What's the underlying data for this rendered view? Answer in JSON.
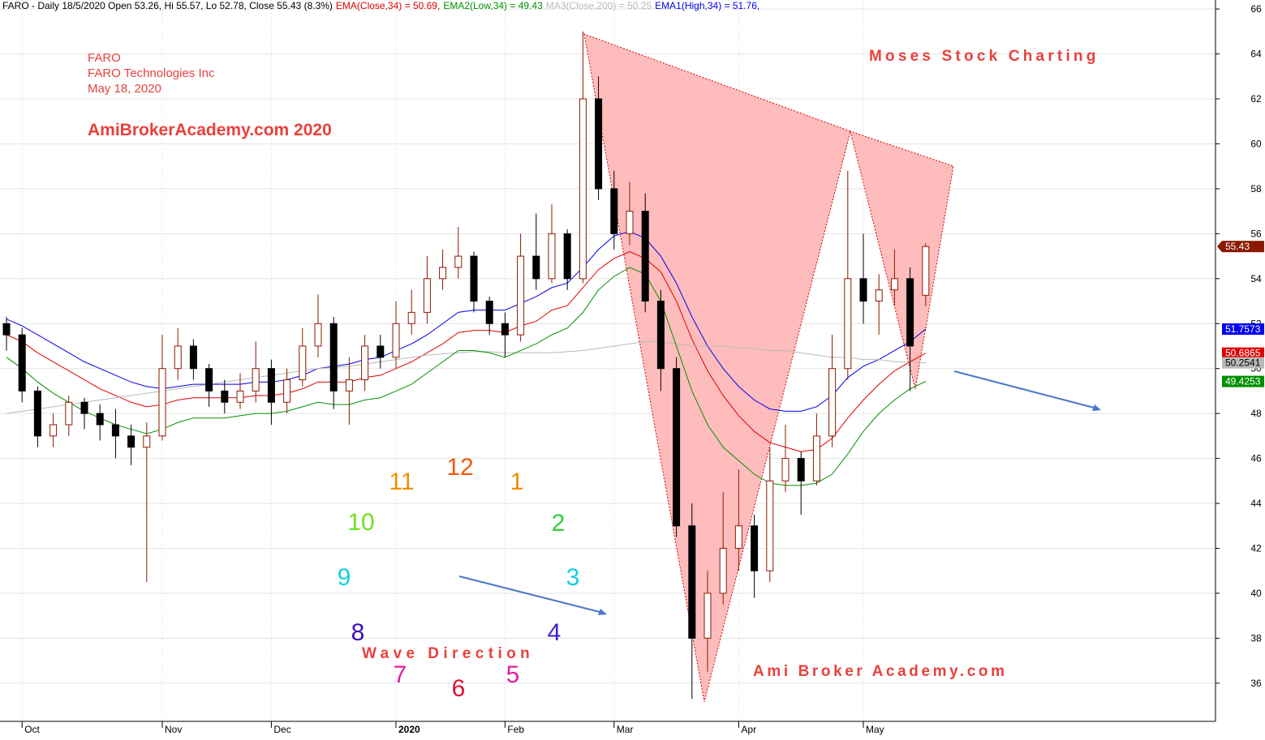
{
  "chart_data": {
    "type": "candlestick",
    "title": "FARO - Daily 18/5/2020 Open 53.26, Hi 55.57, Lo 52.78, Close 55.43 (8.3%)",
    "categories": [
      null,
      "Oct",
      null,
      null,
      null,
      null,
      null,
      null,
      null,
      null,
      "Nov",
      null,
      null,
      null,
      null,
      null,
      null,
      "Dec",
      null,
      null,
      null,
      null,
      null,
      null,
      null,
      "2020",
      null,
      null,
      null,
      null,
      null,
      null,
      "Feb",
      null,
      null,
      null,
      null,
      null,
      null,
      "Mar",
      null,
      null,
      null,
      null,
      null,
      null,
      null,
      "Apr",
      null,
      null,
      null,
      null,
      null,
      null,
      null,
      "May",
      null,
      null,
      null,
      null
    ],
    "open": [
      52,
      51.5,
      49,
      47,
      47.5,
      48.5,
      48,
      47.5,
      47,
      46.5,
      47,
      50,
      51,
      50,
      49,
      48.5,
      49,
      50,
      48.5,
      49.5,
      51,
      52,
      49,
      49.5,
      51,
      50.5,
      52,
      52.5,
      54,
      54.5,
      55,
      53,
      52,
      51.5,
      55,
      54,
      56,
      54,
      62,
      58,
      56,
      57,
      53,
      50,
      43,
      38,
      40,
      42,
      43,
      41,
      45,
      46,
      45,
      47,
      50,
      54,
      53,
      53.5,
      54,
      53.26
    ],
    "high": [
      52.3,
      51.8,
      49.2,
      48,
      48.8,
      48.7,
      48.4,
      48.2,
      47.5,
      47.6,
      51.5,
      51.8,
      51.3,
      50.2,
      49.5,
      49.8,
      51.2,
      50.4,
      50,
      51.8,
      53.3,
      52.3,
      50.5,
      51.5,
      51.5,
      53,
      53.5,
      55,
      55.3,
      56.3,
      55.2,
      53.2,
      52.5,
      56,
      56.9,
      57.3,
      56.2,
      65,
      63,
      58.8,
      58.3,
      57.8,
      53.5,
      50.5,
      44,
      41,
      44.5,
      45.5,
      43.5,
      46.5,
      47.5,
      46.3,
      48,
      51.5,
      58.8,
      56,
      54.2,
      55.3,
      54.5,
      55.57
    ],
    "low": [
      50.8,
      48.5,
      46.5,
      46.5,
      47,
      47.3,
      46.8,
      46,
      45.7,
      40.5,
      46.8,
      49.5,
      49.5,
      48.3,
      48,
      48.2,
      48.5,
      47.5,
      48,
      49.2,
      50.5,
      48.2,
      47.5,
      49,
      50,
      50,
      51.5,
      52,
      53.5,
      54,
      52.5,
      51.5,
      50.5,
      51.2,
      53.5,
      53.8,
      53.5,
      53.8,
      57.5,
      55.3,
      55.5,
      52.5,
      49,
      42.5,
      35.3,
      36.5,
      39.5,
      41,
      39.8,
      40.5,
      44.5,
      43.5,
      44.8,
      46.5,
      49.5,
      52,
      51.5,
      52.8,
      49,
      52.78
    ],
    "close": [
      51.5,
      49,
      47,
      47.5,
      48.5,
      48,
      47.5,
      47,
      46.5,
      47,
      50,
      51,
      50,
      49,
      48.5,
      49,
      50,
      48.5,
      49.5,
      51,
      52,
      49,
      49.5,
      51,
      50.5,
      52,
      52.5,
      54,
      54.5,
      55,
      53,
      52,
      51.5,
      55,
      54,
      56,
      54,
      62,
      58,
      56,
      57,
      53,
      50,
      43,
      38,
      40,
      42,
      43,
      41,
      45,
      46,
      45,
      47,
      50,
      54,
      53,
      53.5,
      54,
      51,
      55.43
    ],
    "close_color": "#8b1a00",
    "series": [
      {
        "name": "EMA1(High,34) = 51.76,",
        "color": "#0000ee",
        "values": [
          52.2,
          51.9,
          51.5,
          51.1,
          50.7,
          50.3,
          50,
          49.7,
          49.4,
          49.2,
          49.1,
          49.2,
          49.3,
          49.3,
          49.3,
          49.3,
          49.4,
          49.4,
          49.5,
          49.7,
          50,
          50.1,
          50.2,
          50.4,
          50.5,
          50.8,
          51.1,
          51.5,
          52,
          52.5,
          52.6,
          52.6,
          52.6,
          52.9,
          53.2,
          53.6,
          53.8,
          54.5,
          55.3,
          55.9,
          56.1,
          55.8,
          55,
          53.8,
          52.3,
          51,
          50,
          49.2,
          48.6,
          48.2,
          48.1,
          48.1,
          48.3,
          48.8,
          49.6,
          50.1,
          50.4,
          50.8,
          51.2,
          51.7573
        ]
      },
      {
        "name": "EMA(Close,34) = 50.69,",
        "color": "#e00000",
        "values": [
          51.5,
          51.2,
          50.7,
          50.3,
          49.9,
          49.5,
          49.1,
          48.8,
          48.5,
          48.3,
          48.4,
          48.6,
          48.7,
          48.7,
          48.7,
          48.7,
          48.8,
          48.8,
          48.9,
          49.1,
          49.4,
          49.4,
          49.4,
          49.6,
          49.7,
          50,
          50.3,
          50.7,
          51.1,
          51.6,
          51.7,
          51.7,
          51.6,
          51.9,
          52.1,
          52.6,
          52.8,
          53.6,
          54.4,
          54.9,
          55.2,
          54.9,
          54.3,
          53,
          51.3,
          49.9,
          48.8,
          47.9,
          47.2,
          46.7,
          46.5,
          46.3,
          46.4,
          46.9,
          47.8,
          48.6,
          49.3,
          49.9,
          50.3,
          50.6865
        ]
      },
      {
        "name": "MA3(Close,200) = 50.25",
        "color": "#b8b8b8",
        "values": [
          48,
          48.1,
          48.2,
          48.3,
          48.4,
          48.5,
          48.6,
          48.7,
          48.8,
          48.9,
          49,
          49.1,
          49.2,
          49.3,
          49.4,
          49.5,
          49.6,
          49.7,
          49.8,
          49.9,
          50,
          50.05,
          50.1,
          50.2,
          50.3,
          50.4,
          50.5,
          50.6,
          50.65,
          50.7,
          50.75,
          50.75,
          50.7,
          50.7,
          50.7,
          50.7,
          50.75,
          50.8,
          50.9,
          51,
          51.1,
          51.2,
          51.2,
          51.1,
          51,
          51,
          51,
          50.9,
          50.9,
          50.8,
          50.8,
          50.7,
          50.6,
          50.5,
          50.5,
          50.4,
          50.4,
          50.3,
          50.3,
          50.2541
        ]
      },
      {
        "name": "EMA2(Low,34) = 49.43",
        "color": "#009000",
        "values": [
          50.5,
          50,
          49.4,
          48.9,
          48.5,
          48.1,
          47.8,
          47.5,
          47.3,
          47.1,
          47.3,
          47.6,
          47.8,
          47.8,
          47.8,
          47.9,
          48,
          48,
          48.1,
          48.3,
          48.5,
          48.4,
          48.4,
          48.6,
          48.7,
          49,
          49.3,
          49.8,
          50.3,
          50.8,
          50.8,
          50.7,
          50.5,
          50.8,
          51.1,
          51.5,
          51.8,
          52.5,
          53.5,
          54.1,
          54.5,
          54.2,
          53,
          51,
          49,
          47.5,
          46.5,
          45.9,
          45.3,
          44.9,
          44.8,
          44.8,
          44.9,
          45.3,
          46.2,
          47.2,
          48,
          48.6,
          49.1,
          49.4253
        ]
      }
    ],
    "ylim": [
      34.3,
      66.4
    ],
    "yticks": [
      36,
      38,
      40,
      42,
      44,
      46,
      48,
      50,
      52,
      54,
      56,
      58,
      60,
      62,
      64,
      66
    ],
    "grid": true,
    "annotations": [
      "FARO",
      "FARO Technologies Inc",
      "May 18, 2020",
      "AmiBrokerAcademy.com 2020",
      "Moses Stock Charting",
      "Ami Broker Academy.com",
      "Wave Direction"
    ],
    "clock": [
      "12",
      "1",
      "2",
      "3",
      "4",
      "5",
      "6",
      "7",
      "8",
      "9",
      "10",
      "11"
    ]
  }
}
